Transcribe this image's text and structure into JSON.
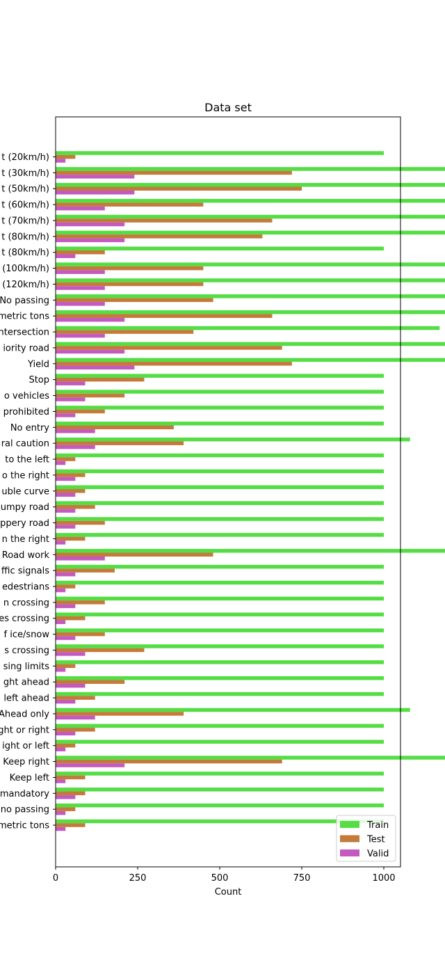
{
  "chart_data": {
    "type": "bar",
    "orientation": "horizontal",
    "title": "Data set",
    "xlabel": "Count",
    "ylabel": "",
    "xlim": [
      0,
      2100
    ],
    "xticks": [
      0,
      250,
      500,
      750,
      1000,
      1250,
      1500,
      1750,
      2000
    ],
    "grid": false,
    "legend_position": "bottom-right",
    "categories": [
      "t (20km/h)",
      "t (30km/h)",
      "t (50km/h)",
      "t (60km/h)",
      "t (70km/h)",
      "t (80km/h)",
      "t (80km/h)",
      "(100km/h)",
      "(120km/h)",
      "No passing",
      "metric tons",
      "ntersection",
      "iority road",
      "Yield",
      "Stop",
      "o vehicles",
      "prohibited",
      "No entry",
      "ral caution",
      "to the left",
      "o the right",
      "uble curve",
      "umpy road",
      "ppery road",
      "n the right",
      "Road work",
      "ffic signals",
      "edestrians",
      "n crossing",
      "es crossing",
      "f ice/snow",
      "s crossing",
      "sing limits",
      "ght ahead",
      "left ahead",
      "Ahead only",
      "ght or right",
      "ight or left",
      "Keep right",
      "Keep left",
      "mandatory",
      "no passing",
      "metric tons"
    ],
    "series": [
      {
        "name": "Train",
        "color": "#55dd44",
        "values": [
          1000,
          1980,
          2010,
          1260,
          1770,
          1650,
          1000,
          1290,
          1260,
          1320,
          1800,
          1170,
          1890,
          1920,
          1000,
          1000,
          1000,
          1000,
          1080,
          1000,
          1000,
          1000,
          1000,
          1000,
          1000,
          1350,
          1000,
          1000,
          1000,
          1000,
          1000,
          1000,
          1000,
          1000,
          1000,
          1080,
          1000,
          1000,
          1860,
          1000,
          1000,
          1000,
          1000
        ]
      },
      {
        "name": "Test",
        "color": "#c47a3a",
        "values": [
          60,
          720,
          750,
          450,
          660,
          630,
          150,
          450,
          450,
          480,
          660,
          420,
          690,
          720,
          270,
          210,
          150,
          360,
          390,
          60,
          90,
          90,
          120,
          150,
          90,
          480,
          180,
          60,
          150,
          90,
          150,
          270,
          60,
          210,
          120,
          390,
          120,
          60,
          690,
          90,
          90,
          60,
          90
        ]
      },
      {
        "name": "Valid",
        "color": "#c45ac0",
        "values": [
          30,
          240,
          240,
          150,
          210,
          210,
          60,
          150,
          150,
          150,
          210,
          150,
          210,
          240,
          90,
          90,
          60,
          120,
          120,
          30,
          60,
          60,
          60,
          60,
          30,
          150,
          60,
          30,
          60,
          30,
          60,
          90,
          30,
          90,
          60,
          120,
          60,
          30,
          210,
          30,
          60,
          30,
          30
        ]
      }
    ]
  }
}
